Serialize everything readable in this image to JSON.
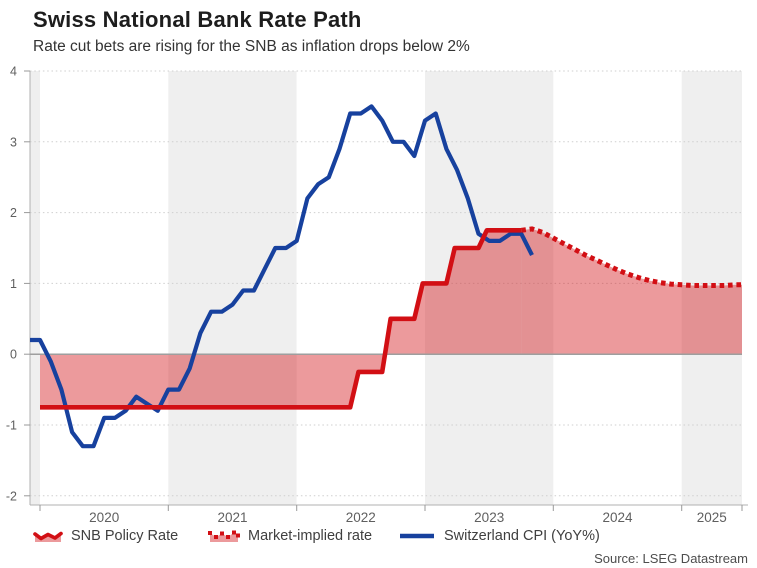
{
  "chart_data": {
    "type": "line",
    "title": "Swiss National Bank Rate Path",
    "subtitle": "Rate cut bets are rising for the SNB as inflation drops below 2%",
    "x_axis": {
      "tick_labels": [
        "2020",
        "2021",
        "2022",
        "2023",
        "2024",
        "2025"
      ],
      "range": [
        2019.922,
        2025.47
      ],
      "shaded_years": [
        2021,
        2023,
        2025
      ],
      "shaded_lead_in": true
    },
    "y_axis": {
      "ticks": [
        4,
        3,
        2,
        1,
        0,
        -1,
        -2
      ],
      "range": [
        -2.13,
        4
      ],
      "gridlines": "dotted",
      "zero_line": true
    },
    "series": [
      {
        "name": "SNB Policy Rate",
        "style": "step-line-with-area",
        "steps": [
          [
            "2020-01",
            -0.75
          ],
          [
            "2022-06",
            -0.25
          ],
          [
            "2022-09",
            0.5
          ],
          [
            "2022-12",
            1.0
          ],
          [
            "2023-03",
            1.5
          ],
          [
            "2023-06",
            1.75
          ]
        ],
        "end": "2023-10"
      },
      {
        "name": "Market-implied rate",
        "style": "dotted-line-with-area",
        "start": "2023-10",
        "monthly_values": [
          1.75,
          1.77,
          1.72,
          1.64,
          1.56,
          1.48,
          1.4,
          1.33,
          1.26,
          1.19,
          1.13,
          1.08,
          1.04,
          1.01,
          0.99,
          0.98,
          0.97,
          0.97,
          0.97,
          0.97,
          0.98,
          0.98
        ]
      },
      {
        "name": "Switzerland CPI (YoY%)",
        "style": "line",
        "start": "2019-12",
        "monthly_values": [
          0.2,
          0.2,
          -0.1,
          -0.5,
          -1.1,
          -1.3,
          -1.3,
          -0.9,
          -0.9,
          -0.8,
          -0.6,
          -0.7,
          -0.8,
          -0.5,
          -0.5,
          -0.2,
          0.3,
          0.6,
          0.6,
          0.7,
          0.9,
          0.9,
          1.2,
          1.5,
          1.5,
          1.6,
          2.2,
          2.4,
          2.5,
          2.9,
          3.4,
          3.4,
          3.5,
          3.3,
          3.0,
          3.0,
          2.8,
          3.3,
          3.4,
          2.9,
          2.6,
          2.2,
          1.7,
          1.6,
          1.6,
          1.7,
          1.7,
          1.4
        ]
      }
    ]
  },
  "legend": {
    "items": [
      {
        "label": "SNB Policy Rate",
        "icon": "red-area-wave-icon"
      },
      {
        "label": "Market-implied rate",
        "icon": "red-dotted-area-icon"
      },
      {
        "label": "Switzerland CPI (YoY%)",
        "icon": "blue-line-icon"
      }
    ]
  },
  "source": "Source: LSEG Datastream",
  "colors": {
    "line_red": "#d20f14",
    "area_pink": "rgba(210,15,20,0.42)",
    "cpi_blue": "#17419e",
    "band_gray": "#efefef",
    "gridline": "#cfcfcf",
    "zero_line": "#9e9e9e",
    "axis": "#b0b0b0",
    "tick": "#999999",
    "axis_text": "#5f5f5f"
  }
}
